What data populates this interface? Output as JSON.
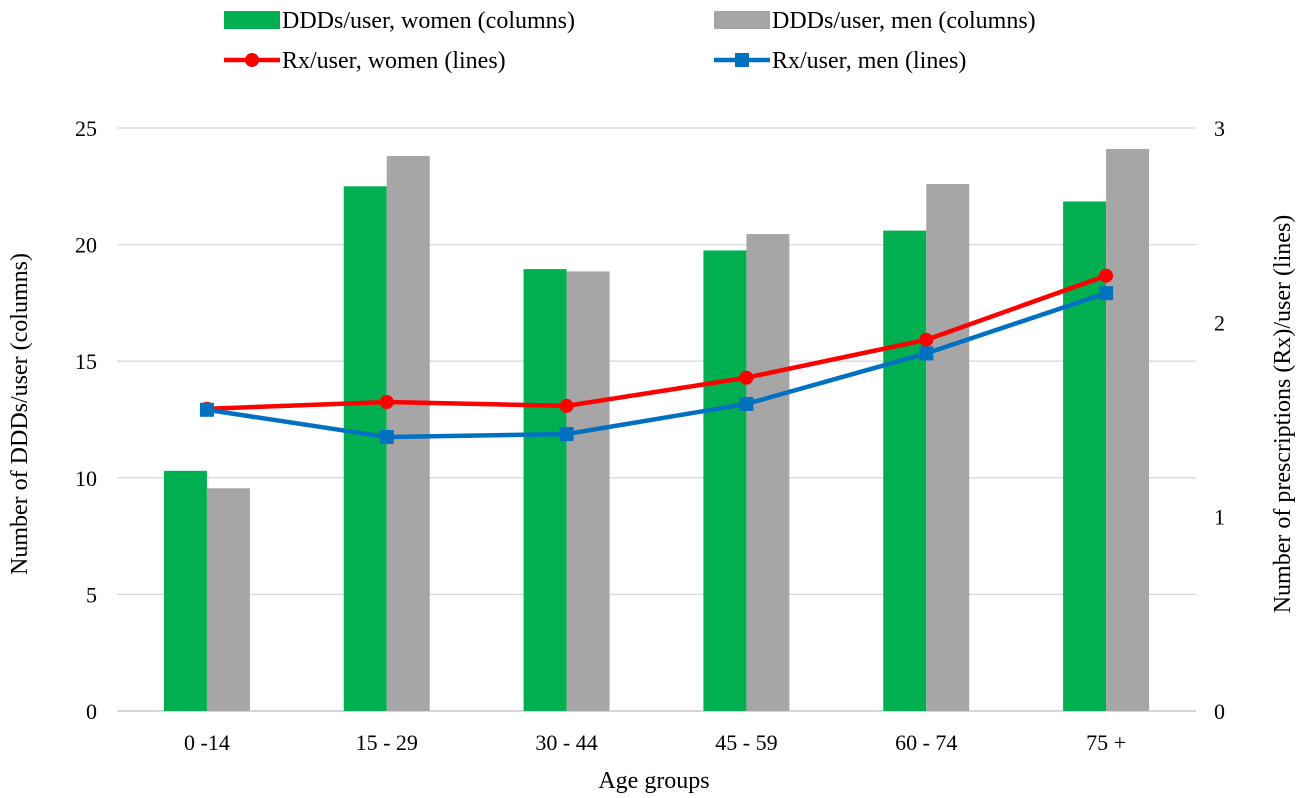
{
  "chart_data": {
    "type": "bar",
    "title": "",
    "xlabel": "Age groups",
    "ylabel": "Number of DDDs/user (columns)",
    "y2label": "Number of prescriptions (Rx)/user (lines)",
    "ylim": [
      0,
      25
    ],
    "y2lim": [
      0,
      3
    ],
    "yticks": [
      "0",
      "5",
      "10",
      "15",
      "20",
      "25"
    ],
    "y2ticks": [
      "0",
      "1",
      "2",
      "3"
    ],
    "grid": true,
    "legend_position": "top",
    "categories": [
      "0 -14",
      "15 - 29",
      "30 - 44",
      "45 - 59",
      "60 - 74",
      "75 +"
    ],
    "series": [
      {
        "name": "DDDs/user, women (columns)",
        "kind": "bar",
        "axis": "left",
        "color": "#00b050",
        "values": [
          10.3,
          22.5,
          18.95,
          19.75,
          20.6,
          21.85
        ]
      },
      {
        "name": "DDDs/user, men (columns)",
        "kind": "bar",
        "axis": "left",
        "color": "#a6a6a6",
        "values": [
          9.55,
          23.8,
          18.85,
          20.45,
          22.6,
          24.1
        ]
      },
      {
        "name": "Rx/user, women (lines)",
        "kind": "line",
        "axis": "right",
        "color": "#ff0000",
        "marker": "circle",
        "values": [
          1.555,
          1.59,
          1.57,
          1.715,
          1.91,
          2.24
        ]
      },
      {
        "name": "Rx/user, men (lines)",
        "kind": "line",
        "axis": "right",
        "color": "#0070c0",
        "marker": "square",
        "values": [
          1.55,
          1.41,
          1.425,
          1.58,
          1.84,
          2.15
        ]
      }
    ]
  }
}
